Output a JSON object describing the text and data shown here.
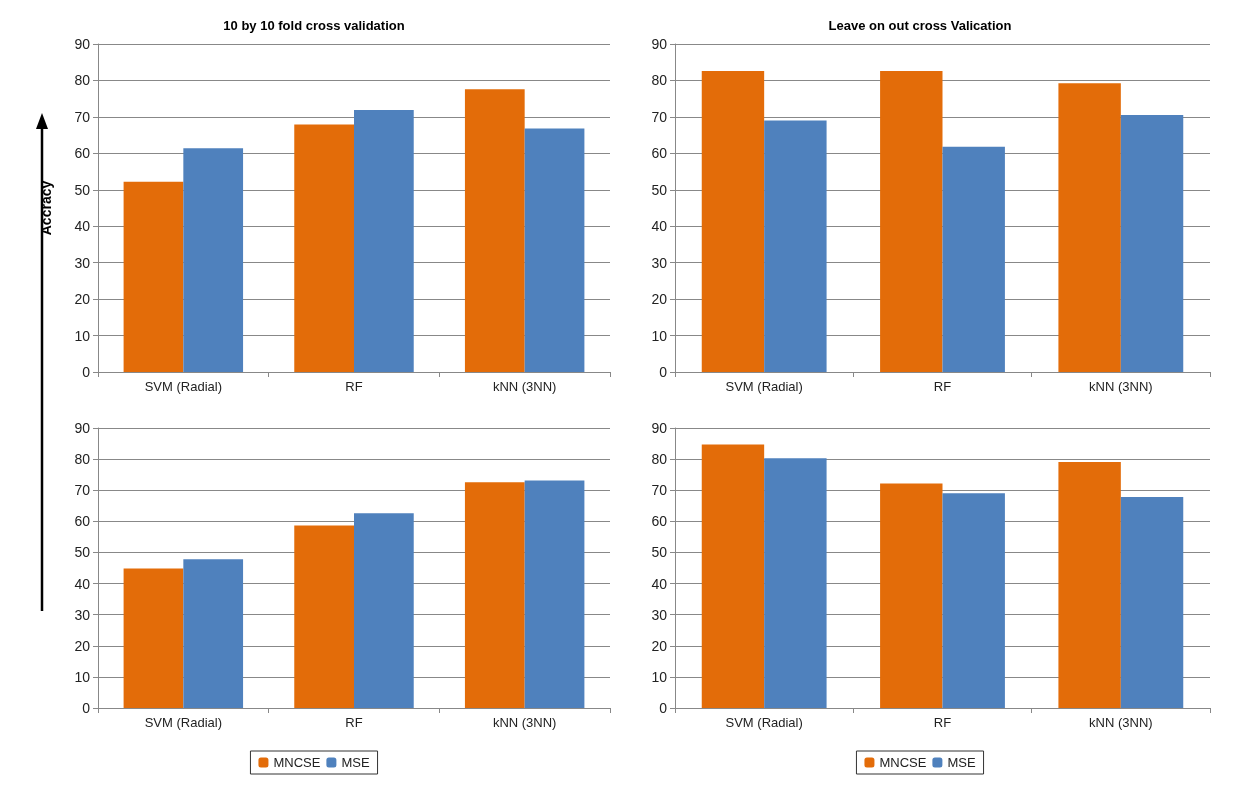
{
  "chart_data": [
    {
      "type": "bar",
      "title": "10 by 10 fold cross validation",
      "ylabel": "Accracy",
      "categories": [
        "SVM (Radial)",
        "RF",
        "kNN (3NN)"
      ],
      "series": [
        {
          "color": "#e36c09",
          "values": [
            52.2,
            67.9,
            77.6
          ]
        },
        {
          "color": "#4f81bd",
          "values": [
            61.4,
            71.9,
            66.8
          ]
        }
      ],
      "ylim": [
        0,
        90
      ],
      "yticks": [
        0,
        10,
        20,
        30,
        40,
        50,
        60,
        70,
        80,
        90
      ],
      "grid": "y",
      "legend": false
    },
    {
      "type": "bar",
      "title": "Leave on out cross Valication",
      "categories": [
        "SVM (Radial)",
        "RF",
        "kNN (3NN)"
      ],
      "series": [
        {
          "color": "#e36c09",
          "values": [
            82.6,
            82.6,
            79.2
          ]
        },
        {
          "color": "#4f81bd",
          "values": [
            69.0,
            61.8,
            70.5
          ]
        }
      ],
      "ylim": [
        0,
        90
      ],
      "yticks": [
        0,
        10,
        20,
        30,
        40,
        50,
        60,
        70,
        80,
        90
      ],
      "grid": "y",
      "legend": false
    },
    {
      "type": "bar",
      "categories": [
        "SVM (Radial)",
        "RF",
        "kNN (3NN)"
      ],
      "series": [
        {
          "name": "MNCSE",
          "color": "#e36c09",
          "values": [
            44.8,
            58.7,
            72.6
          ]
        },
        {
          "name": "MSE",
          "color": "#4f81bd",
          "values": [
            47.8,
            62.6,
            73.1
          ]
        }
      ],
      "ylim": [
        0,
        90
      ],
      "yticks": [
        0,
        10,
        20,
        30,
        40,
        50,
        60,
        70,
        80,
        90
      ],
      "grid": "y",
      "legend": "bottom"
    },
    {
      "type": "bar",
      "categories": [
        "SVM (Radial)",
        "RF",
        "kNN (3NN)"
      ],
      "series": [
        {
          "name": "MNCSE",
          "color": "#e36c09",
          "values": [
            84.7,
            72.2,
            79.1
          ]
        },
        {
          "name": "MSE",
          "color": "#4f81bd",
          "values": [
            80.3,
            69.0,
            67.8
          ]
        }
      ],
      "ylim": [
        0,
        90
      ],
      "yticks": [
        0,
        10,
        20,
        30,
        40,
        50,
        60,
        70,
        80,
        90
      ],
      "grid": "y",
      "legend": "bottom"
    }
  ]
}
